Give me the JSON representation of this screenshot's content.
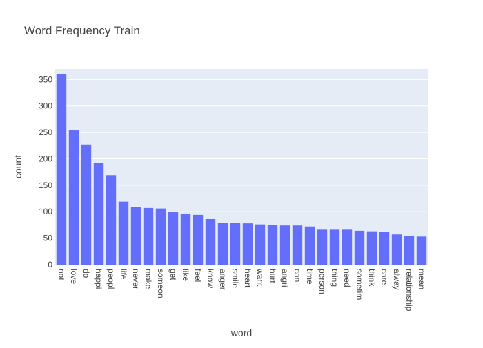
{
  "chart_data": {
    "type": "bar",
    "title": "Word Frequency Train",
    "xlabel": "word",
    "ylabel": "count",
    "ylim": [
      0,
      370
    ],
    "yticks": [
      0,
      50,
      100,
      150,
      200,
      250,
      300,
      350
    ],
    "grid": true,
    "bar_color": "#636efa",
    "plot_bg": "#e5ecf6",
    "categories": [
      "not",
      "love",
      "do",
      "happi",
      "peopl",
      "life",
      "never",
      "make",
      "someon",
      "get",
      "like",
      "feel",
      "know",
      "anger",
      "smile",
      "heart",
      "want",
      "hurt",
      "angri",
      "can",
      "time",
      "person",
      "thing",
      "need",
      "sometim",
      "think",
      "care",
      "alway",
      "relationship",
      "mean"
    ],
    "values": [
      360,
      254,
      227,
      192,
      169,
      119,
      109,
      107,
      106,
      100,
      96,
      94,
      86,
      79,
      79,
      78,
      76,
      75,
      74,
      74,
      72,
      66,
      66,
      66,
      64,
      63,
      62,
      57,
      54,
      53
    ]
  }
}
